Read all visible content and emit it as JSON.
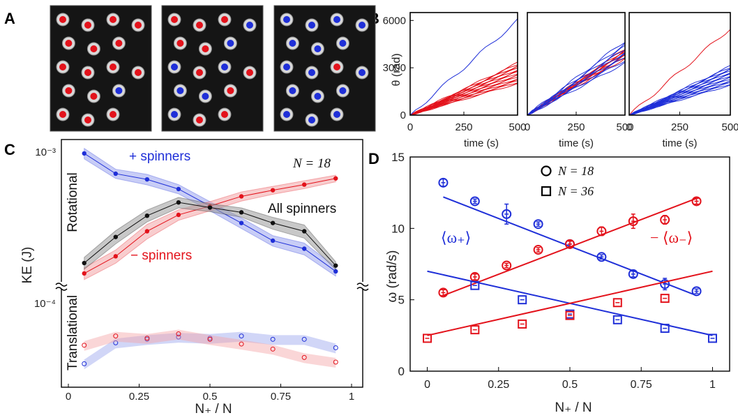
{
  "panels": {
    "A": "A",
    "B": "B",
    "C": "C",
    "D": "D"
  },
  "colors": {
    "blue": "#1f2fd8",
    "red": "#e3121b",
    "black": "#111111",
    "blue_band": "#9aa4ee",
    "red_band": "#f3a4a6",
    "gray_band": "#9a9a9a"
  },
  "photos": {
    "count": 3,
    "grid": "3x5 spinner grid per photo"
  },
  "chart_data": [
    {
      "id": "B",
      "type": "line",
      "ylabel": "θ (rad)",
      "xlabel": "time (s)",
      "xlim": [
        0,
        500
      ],
      "ylim": [
        0,
        6500
      ],
      "xticks": [
        "0",
        "250",
        "500"
      ],
      "yticks": [
        "0",
        "3000",
        "6000"
      ],
      "subplots": [
        {
          "red_count": 17,
          "red_final_range": [
            2000,
            3300
          ],
          "blue_count": 1,
          "blue_final_range": [
            6000,
            6000
          ]
        },
        {
          "red_count": 9,
          "red_final_range": [
            3600,
            4200
          ],
          "blue_count": 9,
          "blue_final_range": [
            3300,
            4700
          ]
        },
        {
          "red_count": 1,
          "red_final_range": [
            5500,
            5500
          ],
          "blue_count": 17,
          "blue_final_range": [
            1900,
            3100
          ]
        }
      ]
    },
    {
      "id": "C",
      "type": "line",
      "ylabel": "KE (J)",
      "xlabel": "N₊ / N",
      "xlim": [
        0,
        1
      ],
      "xticks": [
        "0",
        "0.25",
        "0.5",
        "0.75",
        "1"
      ],
      "yticks": [
        "10⁻³",
        "10⁻⁴"
      ],
      "scale": "log (broken axis)",
      "x": [
        0.056,
        0.167,
        0.278,
        0.389,
        0.5,
        0.611,
        0.722,
        0.833,
        0.944
      ],
      "section_labels": [
        "Rotational",
        "Translational"
      ],
      "annotation_N": "N = 18",
      "series": [
        {
          "name": "+ spinners",
          "group": "rotational",
          "color": "blue",
          "values": [
            0.00098,
            0.00072,
            0.00066,
            0.00057,
            0.00044,
            0.00034,
            0.00026,
            0.00023,
            0.000163
          ],
          "band": [
            0.08,
            0.07,
            0.08,
            0.07,
            0.07,
            0.08,
            0.08,
            0.09,
            0.07
          ]
        },
        {
          "name": "− spinners",
          "group": "rotational",
          "color": "red",
          "values": [
            0.000158,
            0.000205,
            0.0003,
            0.000385,
            0.00044,
            0.00051,
            0.00056,
            0.00061,
            0.00067
          ],
          "band": [
            0.09,
            0.1,
            0.11,
            0.08,
            0.07,
            0.07,
            0.06,
            0.06,
            0.05
          ]
        },
        {
          "name": "All spinners",
          "group": "rotational",
          "color": "black",
          "values": [
            0.000185,
            0.000275,
            0.00038,
            0.000465,
            0.00043,
            0.0004,
            0.00034,
            0.0003,
            0.000178
          ],
          "band": [
            0.09,
            0.1,
            0.09,
            0.08,
            0.06,
            0.07,
            0.09,
            0.1,
            0.06
          ]
        },
        {
          "name": "+ spinners (translational)",
          "group": "translational",
          "color": "blue",
          "values": [
            4e-05,
            5.5e-05,
            5.8e-05,
            6e-05,
            5.9e-05,
            6.1e-05,
            5.8e-05,
            5.8e-05,
            5.1e-05
          ]
        },
        {
          "name": "− spinners (translational)",
          "group": "translational",
          "color": "red",
          "values": [
            5.3e-05,
            6.1e-05,
            5.9e-05,
            6.3e-05,
            5.8e-05,
            5.4e-05,
            5e-05,
            4.4e-05,
            4.1e-05
          ]
        }
      ]
    },
    {
      "id": "D",
      "type": "scatter",
      "ylabel": "ω (rad/s)",
      "xlabel": "N₊ / N",
      "xlim": [
        -0.06,
        1.06
      ],
      "ylim": [
        0,
        15
      ],
      "xticks": [
        "0",
        "0.25",
        "0.5",
        "0.75",
        "1"
      ],
      "yticks": [
        "0",
        "5",
        "10",
        "15"
      ],
      "legend": [
        {
          "marker": "circle",
          "label": "N = 18"
        },
        {
          "marker": "square",
          "label": "N = 36"
        }
      ],
      "labels": {
        "plus": "⟨ω₊⟩",
        "minus": "− ⟨ω₋⟩"
      },
      "series": [
        {
          "name": "⟨ω₊⟩ N=18",
          "marker": "circle",
          "color": "blue",
          "x": [
            0.056,
            0.167,
            0.278,
            0.389,
            0.5,
            0.611,
            0.722,
            0.833,
            0.944
          ],
          "y": [
            13.2,
            11.9,
            11.0,
            10.3,
            8.9,
            8.0,
            6.8,
            6.1,
            5.6
          ],
          "err": [
            0.25,
            0.15,
            0.7,
            0.15,
            0.2,
            0.15,
            0.2,
            0.4,
            0.15
          ],
          "fit": [
            [
              0.056,
              12.2
            ],
            [
              0.944,
              5.3
            ]
          ]
        },
        {
          "name": "− ⟨ω₋⟩ N=18",
          "marker": "circle",
          "color": "red",
          "x": [
            0.056,
            0.167,
            0.278,
            0.389,
            0.5,
            0.611,
            0.722,
            0.833,
            0.944
          ],
          "y": [
            5.5,
            6.6,
            7.4,
            8.5,
            8.9,
            9.8,
            10.5,
            10.6,
            11.9
          ],
          "err": [
            0.2,
            0.2,
            0.15,
            0.15,
            0.2,
            0.3,
            0.5,
            0.3,
            0.2
          ],
          "fit": [
            [
              0.056,
              5.3
            ],
            [
              0.944,
              12.1
            ]
          ]
        },
        {
          "name": "⟨ω₊⟩ N=36",
          "marker": "square",
          "color": "blue",
          "x": [
            0.167,
            0.333,
            0.5,
            0.667,
            0.833,
            1.0
          ],
          "y": [
            6.0,
            5.0,
            4.0,
            3.6,
            3.0,
            2.3
          ],
          "fit": [
            [
              0.0,
              7.0
            ],
            [
              1.0,
              2.5
            ]
          ]
        },
        {
          "name": "− ⟨ω₋⟩ N=36",
          "marker": "square",
          "color": "red",
          "x": [
            0.0,
            0.167,
            0.333,
            0.5,
            0.667,
            0.833
          ],
          "y": [
            2.3,
            2.9,
            3.3,
            3.9,
            4.8,
            5.1
          ],
          "fit": [
            [
              0.0,
              2.5
            ],
            [
              1.0,
              7.0
            ]
          ]
        }
      ]
    }
  ]
}
